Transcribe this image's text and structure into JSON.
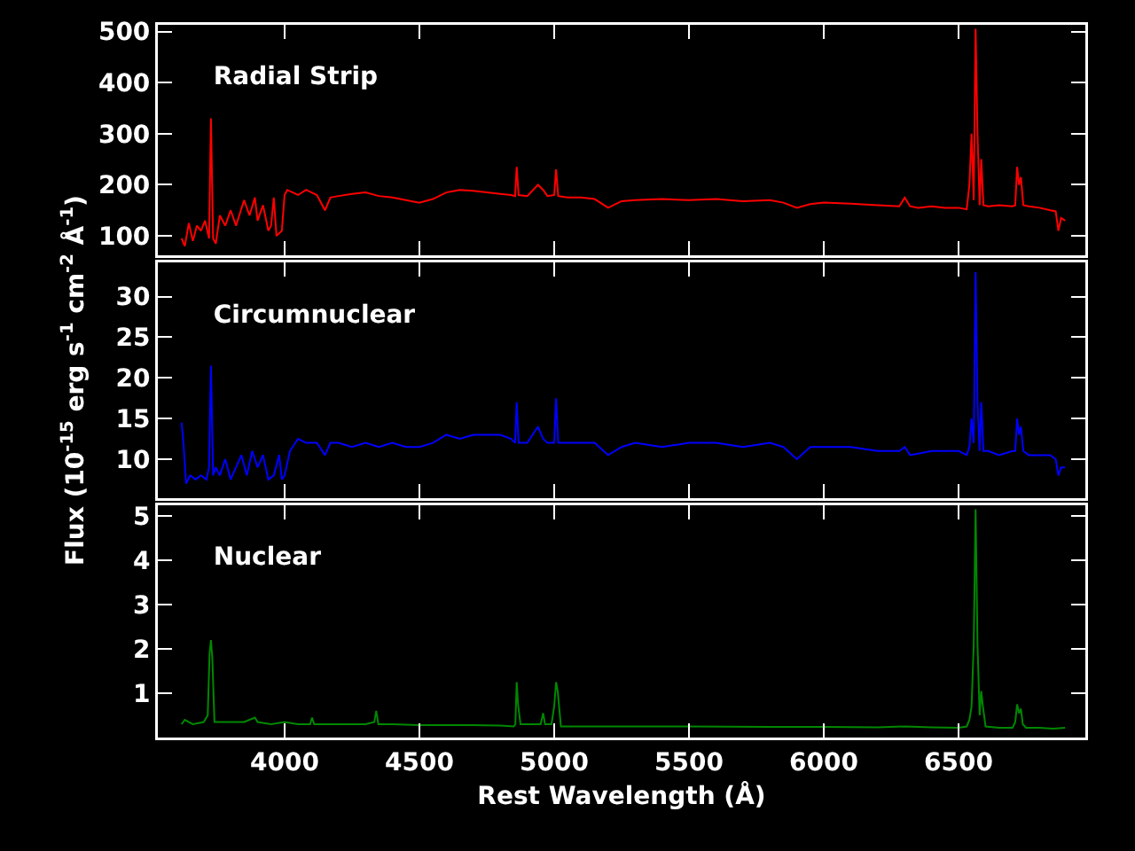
{
  "chart_data": [
    {
      "type": "line",
      "title": "Radial Strip",
      "tick_labels": "y",
      "xlim": [
        3530,
        6970
      ],
      "xticks": [
        4000,
        4500,
        5000,
        5500,
        6000,
        6500
      ],
      "ylim": [
        62,
        513
      ],
      "yticks": [
        100,
        200,
        300,
        400,
        500
      ],
      "x": [
        3618,
        3630,
        3645,
        3660,
        3675,
        3690,
        3705,
        3720,
        3727,
        3735,
        3745,
        3760,
        3780,
        3800,
        3820,
        3850,
        3870,
        3890,
        3900,
        3920,
        3940,
        3950,
        3960,
        3970,
        3990,
        4000,
        4010,
        4030,
        4050,
        4080,
        4100,
        4120,
        4150,
        4170,
        4200,
        4250,
        4300,
        4350,
        4400,
        4450,
        4500,
        4550,
        4600,
        4650,
        4700,
        4750,
        4800,
        4840,
        4855,
        4861,
        4868,
        4900,
        4940,
        4959,
        4975,
        5000,
        5007,
        5015,
        5050,
        5100,
        5150,
        5200,
        5250,
        5300,
        5400,
        5500,
        5600,
        5700,
        5800,
        5850,
        5900,
        5950,
        6000,
        6100,
        6200,
        6280,
        6300,
        6320,
        6350,
        6400,
        6450,
        6500,
        6530,
        6540,
        6548,
        6556,
        6563,
        6570,
        6578,
        6584,
        6592,
        6610,
        6650,
        6700,
        6710,
        6717,
        6724,
        6731,
        6740,
        6760,
        6800,
        6840,
        6860,
        6870,
        6880,
        6895
      ],
      "series": [
        {
          "color": "#ff0000",
          "values": [
            95,
            80,
            125,
            90,
            120,
            110,
            130,
            95,
            330,
            95,
            85,
            140,
            120,
            150,
            120,
            170,
            140,
            175,
            130,
            160,
            110,
            120,
            175,
            100,
            110,
            180,
            190,
            185,
            180,
            190,
            185,
            180,
            150,
            175,
            178,
            182,
            185,
            178,
            175,
            170,
            165,
            172,
            185,
            190,
            188,
            185,
            182,
            180,
            178,
            235,
            180,
            178,
            200,
            190,
            178,
            180,
            230,
            178,
            175,
            175,
            172,
            155,
            168,
            170,
            172,
            170,
            172,
            168,
            170,
            165,
            155,
            162,
            165,
            163,
            160,
            158,
            175,
            158,
            155,
            158,
            155,
            155,
            152,
            200,
            300,
            170,
            505,
            300,
            160,
            250,
            160,
            158,
            160,
            158,
            160,
            235,
            200,
            215,
            160,
            158,
            155,
            150,
            148,
            110,
            135,
            130
          ]
        }
      ]
    },
    {
      "type": "line",
      "title": "Circumnuclear",
      "ylabel": "Flux (10$^{-15}$ erg s$^{-1}$ cm$^{-2}$ Å$^{-1}$)",
      "tick_labels": "y",
      "xlim": [
        3530,
        6970
      ],
      "xticks": [
        4000,
        4500,
        5000,
        5500,
        6000,
        6500
      ],
      "ylim": [
        5.2,
        34.2
      ],
      "yticks": [
        10,
        15,
        20,
        25,
        30
      ],
      "x": [
        3618,
        3625,
        3635,
        3650,
        3670,
        3690,
        3710,
        3720,
        3727,
        3735,
        3745,
        3760,
        3780,
        3800,
        3820,
        3840,
        3860,
        3880,
        3900,
        3920,
        3940,
        3960,
        3980,
        3990,
        4000,
        4020,
        4050,
        4080,
        4100,
        4120,
        4150,
        4170,
        4200,
        4250,
        4300,
        4350,
        4400,
        4450,
        4500,
        4550,
        4600,
        4650,
        4700,
        4750,
        4800,
        4840,
        4855,
        4861,
        4868,
        4900,
        4940,
        4959,
        4975,
        5000,
        5007,
        5015,
        5050,
        5100,
        5150,
        5200,
        5250,
        5300,
        5400,
        5500,
        5600,
        5700,
        5800,
        5850,
        5900,
        5950,
        6000,
        6100,
        6200,
        6280,
        6300,
        6320,
        6400,
        6500,
        6530,
        6540,
        6548,
        6556,
        6563,
        6570,
        6578,
        6584,
        6592,
        6610,
        6650,
        6700,
        6710,
        6717,
        6724,
        6731,
        6740,
        6760,
        6800,
        6840,
        6860,
        6870,
        6880,
        6895
      ],
      "series": [
        {
          "color": "#0000ff",
          "values": [
            14.5,
            12,
            7,
            8,
            7.5,
            8,
            7.5,
            9,
            21.5,
            8,
            9,
            8,
            10,
            7.5,
            9,
            10.5,
            8,
            11,
            9,
            10.5,
            7.5,
            8,
            10.5,
            7.5,
            8,
            11,
            12.5,
            12,
            12,
            12,
            10.5,
            12,
            12,
            11.5,
            12,
            11.5,
            12,
            11.5,
            11.5,
            12,
            13,
            12.5,
            13,
            13,
            13,
            12.5,
            12,
            17,
            12,
            12,
            14,
            12.5,
            12,
            12,
            17.5,
            12,
            12,
            12,
            12,
            10.5,
            11.5,
            12,
            11.5,
            12,
            12,
            11.5,
            12,
            11.5,
            10,
            11.5,
            11.5,
            11.5,
            11,
            11,
            11.5,
            10.5,
            11,
            11,
            10.5,
            11.5,
            15,
            12,
            33,
            17,
            11,
            17,
            11,
            11,
            10.5,
            11,
            11,
            15,
            13,
            14,
            11,
            10.5,
            10.5,
            10.5,
            10,
            8,
            9,
            9
          ]
        }
      ]
    },
    {
      "type": "line",
      "title": "Nuclear",
      "xlabel": "Rest Wavelength (Å)",
      "xlim": [
        3530,
        6970
      ],
      "xticks": [
        4000,
        4500,
        5000,
        5500,
        6000,
        6500
      ],
      "ylim": [
        0,
        5.24
      ],
      "yticks": [
        1,
        2,
        3,
        4,
        5
      ],
      "x": [
        3618,
        3630,
        3660,
        3700,
        3715,
        3722,
        3727,
        3732,
        3740,
        3800,
        3850,
        3890,
        3900,
        3950,
        4000,
        4050,
        4095,
        4102,
        4110,
        4200,
        4300,
        4333,
        4340,
        4348,
        4400,
        4500,
        4600,
        4700,
        4800,
        4850,
        4856,
        4861,
        4866,
        4875,
        4950,
        4959,
        4966,
        4990,
        5000,
        5007,
        5013,
        5025,
        5100,
        5300,
        5500,
        5800,
        6000,
        6200,
        6300,
        6400,
        6500,
        6530,
        6540,
        6548,
        6556,
        6563,
        6570,
        6578,
        6584,
        6590,
        6600,
        6650,
        6700,
        6710,
        6717,
        6724,
        6731,
        6738,
        6750,
        6800,
        6850,
        6895
      ],
      "series": [
        {
          "color": "#008800",
          "values": [
            0.3,
            0.4,
            0.3,
            0.35,
            0.5,
            1.9,
            2.2,
            1.8,
            0.35,
            0.35,
            0.35,
            0.45,
            0.35,
            0.3,
            0.35,
            0.3,
            0.3,
            0.45,
            0.3,
            0.3,
            0.3,
            0.35,
            0.6,
            0.3,
            0.3,
            0.28,
            0.28,
            0.28,
            0.27,
            0.25,
            0.3,
            1.25,
            0.75,
            0.3,
            0.3,
            0.55,
            0.3,
            0.3,
            0.7,
            1.25,
            1.05,
            0.25,
            0.25,
            0.25,
            0.25,
            0.24,
            0.24,
            0.23,
            0.25,
            0.23,
            0.22,
            0.25,
            0.4,
            0.7,
            2.1,
            5.15,
            2.1,
            0.5,
            1.05,
            0.7,
            0.25,
            0.22,
            0.22,
            0.35,
            0.75,
            0.55,
            0.65,
            0.3,
            0.22,
            0.22,
            0.2,
            0.22
          ]
        }
      ]
    }
  ]
}
